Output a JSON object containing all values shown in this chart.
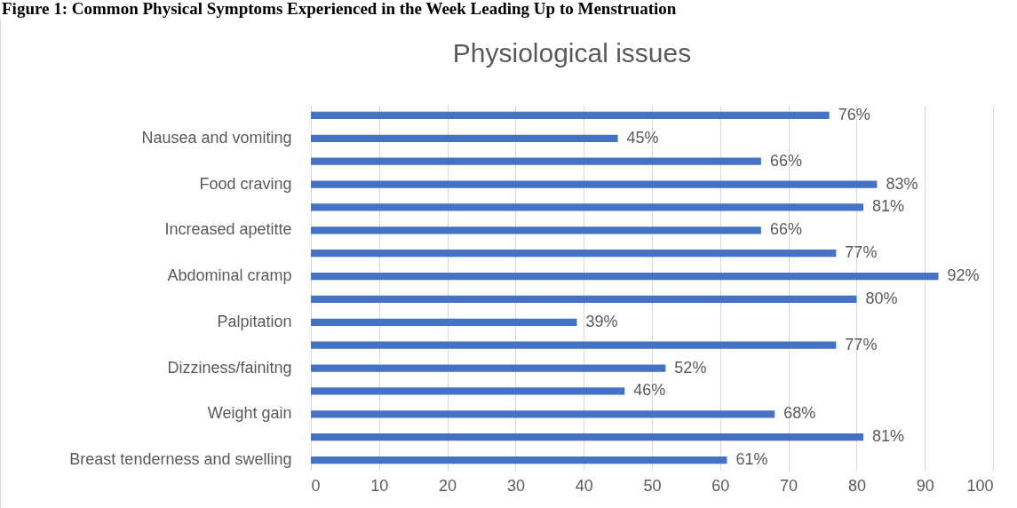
{
  "chart_data": {
    "type": "bar",
    "orientation": "horizontal",
    "title": "Physiological issues",
    "annotations": [
      "Figure 1: Common Physical Symptoms Experienced in the Week Leading Up to Menstruation"
    ],
    "categories": [
      null,
      "Nausea and vomiting",
      null,
      "Food craving",
      null,
      "Increased apetitte",
      null,
      "Abdominal cramp",
      null,
      "Palpitation",
      null,
      "Dizziness/fainitng",
      null,
      "Weight gain",
      null,
      "Breast tenderness and swelling"
    ],
    "values": [
      76,
      45,
      66,
      83,
      81,
      66,
      77,
      92,
      80,
      39,
      77,
      52,
      46,
      68,
      81,
      61
    ],
    "value_labels": [
      "76%",
      "45%",
      "66%",
      "83%",
      "81%",
      "66%",
      "77%",
      "92%",
      "80%",
      "39%",
      "77%",
      "52%",
      "46%",
      "68%",
      "81%",
      "61%"
    ],
    "color": "#4472c4",
    "xlim": [
      0,
      100
    ],
    "xticks": [
      0,
      10,
      20,
      30,
      40,
      50,
      60,
      70,
      80,
      90,
      100
    ],
    "grid": "x"
  }
}
